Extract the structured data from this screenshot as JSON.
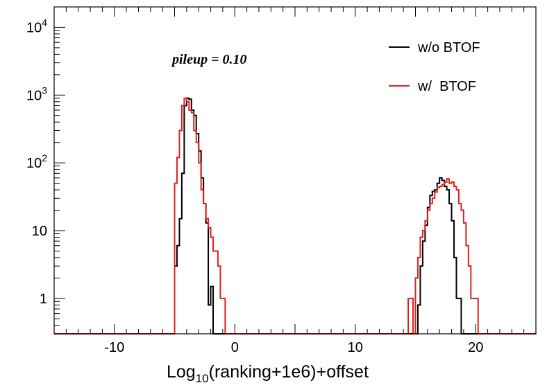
{
  "chart_data": {
    "type": "step-histogram",
    "annotation": "pileup = 0.10",
    "xlabel": {
      "base": "Log",
      "sub": "10",
      "rest": "(ranking+1e6)+offset"
    },
    "ylabel": "",
    "xlim": [
      -15,
      25
    ],
    "ylim": [
      0.3,
      20000
    ],
    "yscale": "log",
    "bin_width": 0.2,
    "x_ticks": [
      -10,
      0,
      10,
      20
    ],
    "x_tick_labels": [
      "-10",
      "0",
      "10",
      "20"
    ],
    "y_ticks": [
      {
        "value": 1,
        "base": "1",
        "exp": ""
      },
      {
        "value": 10,
        "base": "10",
        "exp": ""
      },
      {
        "value": 100,
        "base": "10",
        "exp": "2"
      },
      {
        "value": 1000,
        "base": "10",
        "exp": "3"
      },
      {
        "value": 10000,
        "base": "10",
        "exp": "4"
      }
    ],
    "legend": {
      "position": "top-right",
      "entries": [
        "w/o BTOF",
        "w/  BTOF"
      ]
    },
    "series": [
      {
        "name": "w/o BTOF",
        "color": "#000000",
        "bins": [
          [
            -5.0,
            3
          ],
          [
            -4.8,
            6
          ],
          [
            -4.6,
            15
          ],
          [
            -4.4,
            70
          ],
          [
            -4.2,
            700
          ],
          [
            -4.0,
            900
          ],
          [
            -3.8,
            870
          ],
          [
            -3.6,
            600
          ],
          [
            -3.4,
            500
          ],
          [
            -3.2,
            270
          ],
          [
            -3.0,
            150
          ],
          [
            -2.8,
            60
          ],
          [
            -2.6,
            25
          ],
          [
            -2.4,
            13
          ],
          [
            -2.2,
            0.8
          ],
          [
            -2.0,
            1.5
          ],
          [
            15.2,
            0.8
          ],
          [
            15.4,
            3
          ],
          [
            15.6,
            7
          ],
          [
            15.8,
            12
          ],
          [
            16.0,
            22
          ],
          [
            16.2,
            33
          ],
          [
            16.4,
            38
          ],
          [
            16.6,
            40
          ],
          [
            16.8,
            50
          ],
          [
            17.0,
            60
          ],
          [
            17.2,
            55
          ],
          [
            17.4,
            45
          ],
          [
            17.6,
            40
          ],
          [
            17.8,
            25
          ],
          [
            18.0,
            14
          ],
          [
            18.2,
            4
          ],
          [
            18.4,
            1
          ],
          [
            18.6,
            1
          ]
        ]
      },
      {
        "name": "w/  BTOF",
        "color": "#e41e1e",
        "bins": [
          [
            -5.0,
            50
          ],
          [
            -4.8,
            120
          ],
          [
            -4.6,
            300
          ],
          [
            -4.4,
            700
          ],
          [
            -4.2,
            900
          ],
          [
            -4.0,
            800
          ],
          [
            -3.8,
            600
          ],
          [
            -3.6,
            550
          ],
          [
            -3.4,
            300
          ],
          [
            -3.2,
            200
          ],
          [
            -3.0,
            100
          ],
          [
            -2.8,
            40
          ],
          [
            -2.6,
            25
          ],
          [
            -2.4,
            15
          ],
          [
            -2.2,
            11
          ],
          [
            -2.0,
            8
          ],
          [
            -1.8,
            5
          ],
          [
            -1.6,
            5
          ],
          [
            -1.4,
            3
          ],
          [
            -1.2,
            1
          ],
          [
            -1.0,
            1
          ],
          [
            14.4,
            1
          ],
          [
            14.6,
            1
          ],
          [
            15.0,
            2
          ],
          [
            15.2,
            4
          ],
          [
            15.4,
            8
          ],
          [
            15.6,
            10
          ],
          [
            15.8,
            14
          ],
          [
            16.0,
            20
          ],
          [
            16.2,
            25
          ],
          [
            16.4,
            30
          ],
          [
            16.6,
            37
          ],
          [
            16.8,
            43
          ],
          [
            17.0,
            45
          ],
          [
            17.2,
            48
          ],
          [
            17.4,
            52
          ],
          [
            17.6,
            58
          ],
          [
            17.8,
            50
          ],
          [
            18.0,
            52
          ],
          [
            18.2,
            45
          ],
          [
            18.4,
            40
          ],
          [
            18.6,
            25
          ],
          [
            18.8,
            20
          ],
          [
            19.0,
            13
          ],
          [
            19.2,
            6
          ],
          [
            19.4,
            3
          ],
          [
            19.6,
            1
          ],
          [
            19.8,
            1
          ],
          [
            20.0,
            1
          ]
        ]
      }
    ]
  }
}
